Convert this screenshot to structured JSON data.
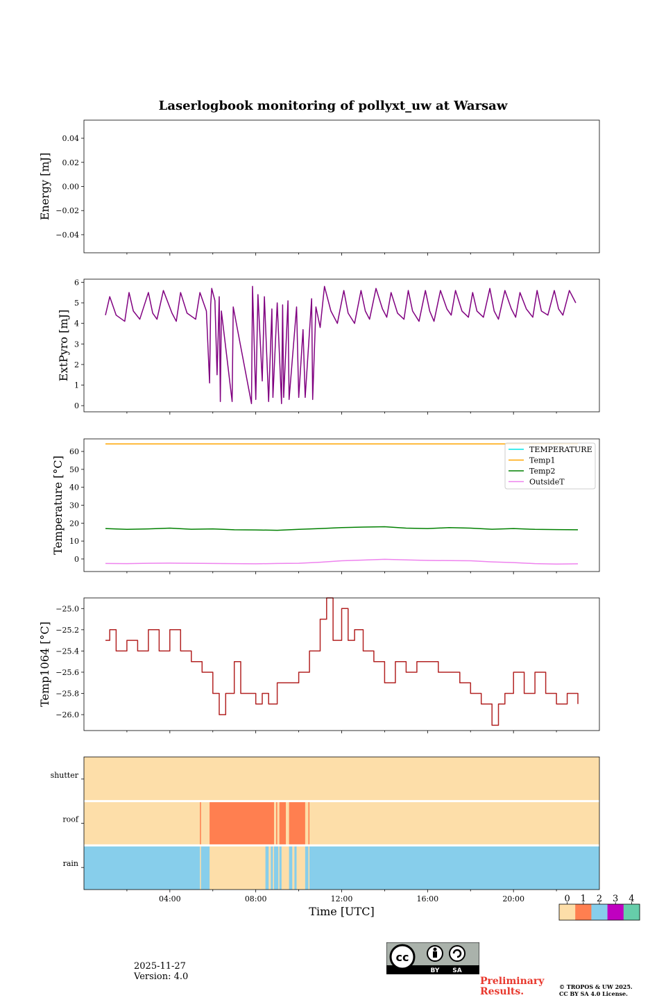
{
  "title": "Laserlogbook monitoring of pollyxt_uw at Warsaw",
  "footer": {
    "date": "2025-11-27",
    "version": "Version: 4.0",
    "preliminary_line1": "Preliminary",
    "preliminary_line2": "Results.",
    "copyright_line1": "© TROPOS & UW 2025.",
    "copyright_line2": "CC BY SA 4.0 License.",
    "license_by": "BY",
    "license_sa": "SA",
    "license_cc": "cc"
  },
  "chart_data": [
    {
      "id": "energy",
      "type": "line",
      "ylabel": "Energy [mJ]",
      "ylim": [
        -0.055,
        0.055
      ],
      "yticks": [
        -0.04,
        -0.02,
        0.0,
        0.02,
        0.04
      ],
      "ytick_labels": [
        "−0.04",
        "−0.02",
        "0.00",
        "0.02",
        "0.04"
      ],
      "series": []
    },
    {
      "id": "extpyro",
      "type": "line",
      "ylabel": "ExtPyro [mJ]",
      "ylim": [
        -0.3,
        6.15
      ],
      "yticks": [
        0,
        1,
        2,
        3,
        4,
        5,
        6
      ],
      "ytick_labels": [
        "0",
        "1",
        "2",
        "3",
        "4",
        "5",
        "6"
      ],
      "series": [
        {
          "name": "ExtPyro",
          "color": "#800080",
          "x": [
            1.0,
            1.2,
            1.5,
            1.9,
            2.1,
            2.3,
            2.6,
            3.0,
            3.2,
            3.4,
            3.7,
            4.1,
            4.3,
            4.5,
            4.8,
            5.2,
            5.4,
            5.7,
            5.85,
            5.9,
            5.95,
            6.1,
            6.2,
            6.3,
            6.35,
            6.4,
            6.9,
            6.95,
            7.8,
            7.85,
            8.0,
            8.1,
            8.3,
            8.4,
            8.6,
            8.75,
            8.8,
            9.0,
            9.2,
            9.25,
            9.3,
            9.5,
            9.55,
            9.9,
            10.0,
            10.2,
            10.3,
            10.6,
            10.65,
            10.8,
            11.0,
            11.2,
            11.5,
            11.8,
            12.1,
            12.3,
            12.6,
            12.9,
            13.1,
            13.3,
            13.6,
            13.9,
            14.1,
            14.3,
            14.6,
            14.9,
            15.1,
            15.3,
            15.6,
            15.9,
            16.1,
            16.3,
            16.6,
            16.9,
            17.1,
            17.3,
            17.6,
            17.9,
            18.1,
            18.3,
            18.6,
            18.9,
            19.1,
            19.3,
            19.6,
            19.9,
            20.1,
            20.3,
            20.6,
            20.9,
            21.1,
            21.3,
            21.6,
            21.9,
            22.1,
            22.3,
            22.6,
            22.9
          ],
          "y": [
            4.4,
            5.3,
            4.4,
            4.1,
            5.5,
            4.6,
            4.2,
            5.5,
            4.5,
            4.2,
            5.6,
            4.5,
            4.1,
            5.5,
            4.5,
            4.2,
            5.5,
            4.6,
            1.1,
            4.9,
            5.7,
            5.1,
            1.5,
            5.3,
            0.2,
            4.6,
            0.2,
            4.8,
            0.1,
            5.8,
            0.3,
            5.4,
            1.2,
            5.3,
            0.2,
            4.7,
            0.4,
            5.0,
            0.1,
            4.9,
            0.4,
            5.1,
            0.3,
            4.8,
            0.4,
            3.7,
            0.4,
            5.2,
            0.3,
            4.8,
            3.8,
            5.8,
            4.6,
            4.0,
            5.6,
            4.5,
            4.0,
            5.6,
            4.6,
            4.2,
            5.7,
            4.7,
            4.3,
            5.5,
            4.5,
            4.2,
            5.6,
            4.6,
            4.1,
            5.6,
            4.6,
            4.1,
            5.6,
            4.7,
            4.4,
            5.6,
            4.6,
            4.3,
            5.5,
            4.6,
            4.3,
            5.7,
            4.6,
            4.2,
            5.6,
            4.7,
            4.3,
            5.5,
            4.7,
            4.3,
            5.6,
            4.6,
            4.4,
            5.6,
            4.7,
            4.4,
            5.6,
            5.0
          ]
        }
      ]
    },
    {
      "id": "temperature",
      "type": "line",
      "ylabel": "Temperature [°C]",
      "ylim": [
        -7,
        67
      ],
      "yticks": [
        0,
        10,
        20,
        30,
        40,
        50,
        60
      ],
      "ytick_labels": [
        "0",
        "10",
        "20",
        "30",
        "40",
        "50",
        "60"
      ],
      "legend": "top-right",
      "series": [
        {
          "name": "TEMPERATURE",
          "color": "#00e5e5",
          "x": [],
          "y": []
        },
        {
          "name": "Temp1",
          "color": "#ffa500",
          "x": [
            1.0,
            23.0
          ],
          "y": [
            64.2,
            64.2
          ]
        },
        {
          "name": "Temp2",
          "color": "#008000",
          "x": [
            1.0,
            2.0,
            3.0,
            4.0,
            5.0,
            6.0,
            7.0,
            8.0,
            9.0,
            10.0,
            11.0,
            12.0,
            13.0,
            14.0,
            15.0,
            16.0,
            17.0,
            18.0,
            19.0,
            20.0,
            21.0,
            22.0,
            23.0
          ],
          "y": [
            17.0,
            16.5,
            16.8,
            17.2,
            16.6,
            16.8,
            16.3,
            16.2,
            16.0,
            16.5,
            17.0,
            17.5,
            17.8,
            18.0,
            17.2,
            17.0,
            17.5,
            17.2,
            16.6,
            17.0,
            16.5,
            16.4,
            16.3
          ]
        },
        {
          "name": "OutsideT",
          "color": "#ee82ee",
          "x": [
            1.0,
            2.0,
            3.0,
            4.0,
            5.0,
            6.0,
            7.0,
            8.0,
            9.0,
            10.0,
            11.0,
            12.0,
            13.0,
            14.0,
            15.0,
            16.0,
            17.0,
            18.0,
            19.0,
            20.0,
            21.0,
            22.0,
            23.0
          ],
          "y": [
            -2.5,
            -2.6,
            -2.4,
            -2.3,
            -2.4,
            -2.5,
            -2.6,
            -2.7,
            -2.5,
            -2.4,
            -1.8,
            -1.0,
            -0.6,
            -0.2,
            -0.5,
            -0.8,
            -0.9,
            -1.0,
            -1.6,
            -2.0,
            -2.6,
            -2.8,
            -2.7
          ]
        }
      ]
    },
    {
      "id": "temp1064",
      "type": "line",
      "ylabel": "Temp1064 [°C]",
      "ylim": [
        -26.15,
        -24.9
      ],
      "yticks": [
        -26.0,
        -25.8,
        -25.6,
        -25.4,
        -25.2,
        -25.0
      ],
      "ytick_labels": [
        "−26.0",
        "−25.8",
        "−25.6",
        "−25.4",
        "−25.2",
        "−25.0"
      ],
      "series": [
        {
          "name": "Temp1064",
          "color": "#b22222",
          "step": true,
          "x": [
            1.0,
            1.2,
            1.5,
            2.0,
            2.5,
            3.0,
            3.5,
            4.0,
            4.5,
            5.0,
            5.5,
            6.0,
            6.3,
            6.6,
            7.0,
            7.3,
            7.6,
            8.0,
            8.3,
            8.6,
            9.0,
            9.5,
            10.0,
            10.5,
            11.0,
            11.3,
            11.6,
            12.0,
            12.3,
            12.6,
            13.0,
            13.5,
            14.0,
            14.5,
            15.0,
            15.5,
            16.0,
            16.5,
            17.0,
            17.5,
            18.0,
            18.5,
            19.0,
            19.3,
            19.6,
            20.0,
            20.5,
            21.0,
            21.5,
            22.0,
            22.5,
            23.0
          ],
          "y": [
            -25.3,
            -25.2,
            -25.4,
            -25.3,
            -25.4,
            -25.2,
            -25.4,
            -25.2,
            -25.4,
            -25.5,
            -25.6,
            -25.8,
            -26.0,
            -25.8,
            -25.5,
            -25.8,
            -25.8,
            -25.9,
            -25.8,
            -25.9,
            -25.7,
            -25.7,
            -25.6,
            -25.4,
            -25.1,
            -24.9,
            -25.3,
            -25.0,
            -25.3,
            -25.2,
            -25.4,
            -25.5,
            -25.7,
            -25.5,
            -25.6,
            -25.5,
            -25.5,
            -25.6,
            -25.6,
            -25.7,
            -25.8,
            -25.9,
            -26.1,
            -25.9,
            -25.8,
            -25.6,
            -25.8,
            -25.6,
            -25.8,
            -25.9,
            -25.8,
            -25.9
          ]
        }
      ]
    },
    {
      "id": "status",
      "type": "heatmap",
      "rows": [
        "shutter",
        "roof",
        "rain"
      ],
      "xlabel": "Time [UTC]",
      "xlim": [
        0,
        24
      ],
      "xticks": [
        4,
        8,
        12,
        16,
        20
      ],
      "xtick_labels": [
        "04:00",
        "08:00",
        "12:00",
        "16:00",
        "20:00"
      ],
      "colorbar": {
        "values": [
          0,
          1,
          2,
          3,
          4
        ],
        "labels": [
          "0",
          "1",
          "2",
          "3",
          "4"
        ],
        "colors": [
          "#fddea9",
          "#ff7f50",
          "#87ceeb",
          "#c000c0",
          "#66cdaa"
        ]
      },
      "rows_data": [
        {
          "name": "shutter",
          "default": 0,
          "segments": []
        },
        {
          "name": "roof",
          "default": 0,
          "segments": [
            [
              5.4,
              5.45,
              1
            ],
            [
              5.85,
              8.85,
              1
            ],
            [
              8.95,
              9.0,
              1
            ],
            [
              9.1,
              9.4,
              1
            ],
            [
              9.55,
              10.3,
              1
            ],
            [
              10.45,
              10.5,
              1
            ]
          ]
        },
        {
          "name": "rain",
          "default": 2,
          "segments": [
            [
              5.4,
              5.45,
              0
            ],
            [
              5.85,
              8.45,
              0
            ],
            [
              8.6,
              8.7,
              0
            ],
            [
              8.8,
              8.85,
              0
            ],
            [
              9.05,
              9.1,
              0
            ],
            [
              9.2,
              9.55,
              0
            ],
            [
              9.7,
              9.8,
              0
            ],
            [
              9.9,
              10.3,
              0
            ],
            [
              10.45,
              10.5,
              0
            ]
          ]
        }
      ]
    }
  ]
}
